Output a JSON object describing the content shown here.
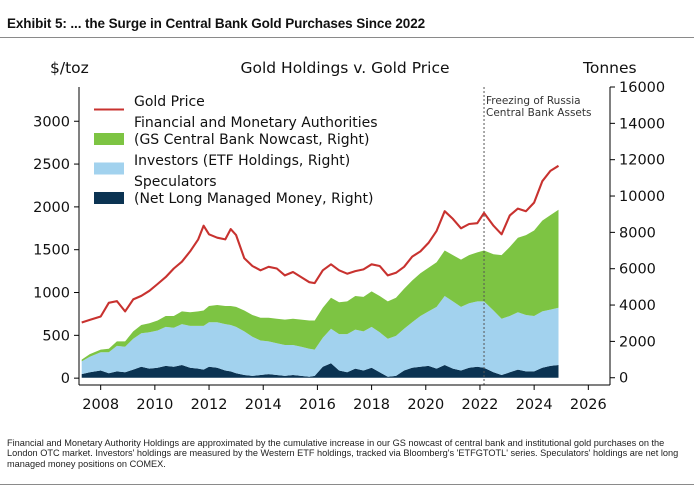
{
  "exhibit_title": "Exhibit 5: ... the Surge in Central Bank Gold Purchases Since 2022",
  "footnote": "Financial and Monetary Authority Holdings are approximated by the cumulative increase in our GS nowcast of central bank and institutional gold purchases on the London OTC market. Investors' holdings are measured by the Western ETF holdings, tracked via Bloomberg's 'ETFGTOTL' series. Speculators' holdings are net long managed money positions on COMEX.",
  "colors": {
    "gold_price": "#c8322f",
    "monetary": "#7dc443",
    "investors": "#a2d2ee",
    "speculators": "#0b3352"
  },
  "chart_data": {
    "type": "area",
    "title": "Gold Holdings v. Gold Price",
    "left_axis_label": "$/toz",
    "right_axis_label": "Tonnes",
    "xlim": [
      2007.2,
      2026.8
    ],
    "x_ticks": [
      2008,
      2010,
      2012,
      2014,
      2016,
      2018,
      2020,
      2022,
      2024,
      2026
    ],
    "left_ylim": [
      -80,
      3400
    ],
    "left_ticks": [
      0,
      500,
      1000,
      1500,
      2000,
      2500,
      3000
    ],
    "right_ylim": [
      -400,
      16000
    ],
    "right_ticks": [
      0,
      2000,
      4000,
      6000,
      8000,
      10000,
      12000,
      14000,
      16000
    ],
    "annotation": {
      "x": 2022.15,
      "lines": [
        "Freezing of Russia",
        "Central Bank Assets"
      ]
    },
    "legend": [
      {
        "label": "Gold Price",
        "kind": "line",
        "color": "#c8322f"
      },
      {
        "label": "Financial and Monetary Authorities\n(GS Central Bank Nowcast, Right)",
        "kind": "patch",
        "color": "#7dc443"
      },
      {
        "label": "Investors (ETF Holdings, Right)",
        "kind": "patch",
        "color": "#a2d2ee"
      },
      {
        "label": "Speculators\n(Net Long Managed Money, Right)",
        "kind": "patch",
        "color": "#0b3352"
      }
    ],
    "x": [
      2007.3,
      2007.6,
      2008.0,
      2008.3,
      2008.6,
      2008.9,
      2009.2,
      2009.5,
      2009.8,
      2010.1,
      2010.4,
      2010.7,
      2011.0,
      2011.3,
      2011.6,
      2011.8,
      2012.0,
      2012.3,
      2012.6,
      2012.8,
      2013.0,
      2013.3,
      2013.6,
      2013.9,
      2014.2,
      2014.5,
      2014.8,
      2015.1,
      2015.4,
      2015.7,
      2015.9,
      2016.2,
      2016.5,
      2016.8,
      2017.1,
      2017.4,
      2017.7,
      2018.0,
      2018.3,
      2018.6,
      2018.9,
      2019.2,
      2019.5,
      2019.8,
      2020.1,
      2020.4,
      2020.7,
      2021.0,
      2021.3,
      2021.6,
      2021.9,
      2022.15,
      2022.5,
      2022.8,
      2023.1,
      2023.4,
      2023.7,
      2024.0,
      2024.3,
      2024.6,
      2024.9
    ],
    "series": [
      {
        "name": "Gold Price",
        "axis": "left",
        "values": [
          650,
          680,
          720,
          880,
          900,
          780,
          920,
          960,
          1020,
          1100,
          1180,
          1280,
          1360,
          1480,
          1620,
          1780,
          1680,
          1640,
          1620,
          1740,
          1670,
          1400,
          1310,
          1260,
          1300,
          1280,
          1200,
          1240,
          1180,
          1120,
          1110,
          1260,
          1330,
          1260,
          1220,
          1250,
          1270,
          1330,
          1310,
          1200,
          1230,
          1300,
          1420,
          1480,
          1580,
          1720,
          1950,
          1860,
          1750,
          1800,
          1810,
          1930,
          1780,
          1680,
          1900,
          1980,
          1950,
          2050,
          2300,
          2420,
          2480
        ]
      },
      {
        "name": "Speculators",
        "axis": "right",
        "values": [
          200,
          300,
          400,
          250,
          350,
          300,
          450,
          600,
          500,
          550,
          650,
          600,
          700,
          550,
          500,
          450,
          600,
          550,
          400,
          350,
          250,
          150,
          100,
          150,
          200,
          150,
          100,
          150,
          100,
          50,
          100,
          600,
          800,
          400,
          300,
          500,
          400,
          550,
          300,
          50,
          100,
          400,
          550,
          600,
          650,
          500,
          700,
          500,
          400,
          550,
          600,
          550,
          300,
          150,
          300,
          450,
          350,
          350,
          550,
          650,
          700
        ]
      },
      {
        "name": "Investors",
        "axis": "right",
        "values": [
          700,
          850,
          1000,
          1150,
          1400,
          1400,
          1700,
          1850,
          2000,
          2050,
          2150,
          2150,
          2250,
          2300,
          2350,
          2400,
          2450,
          2500,
          2550,
          2550,
          2550,
          2400,
          2150,
          1900,
          1800,
          1750,
          1700,
          1650,
          1600,
          1550,
          1450,
          1600,
          1900,
          2000,
          2100,
          2150,
          2150,
          2250,
          2200,
          2100,
          2200,
          2300,
          2500,
          2800,
          3000,
          3400,
          3800,
          3700,
          3500,
          3550,
          3600,
          3650,
          3400,
          3100,
          3100,
          3150,
          3100,
          3050,
          3100,
          3100,
          3150
        ]
      },
      {
        "name": "Financial and Monetary Authorities",
        "axis": "right",
        "values": [
          100,
          150,
          150,
          200,
          250,
          300,
          400,
          450,
          500,
          550,
          600,
          650,
          700,
          750,
          800,
          850,
          900,
          950,
          1000,
          1050,
          1100,
          1150,
          1200,
          1250,
          1300,
          1350,
          1400,
          1450,
          1500,
          1550,
          1600,
          1650,
          1700,
          1750,
          1800,
          1850,
          1900,
          1950,
          2000,
          2050,
          2100,
          2200,
          2300,
          2350,
          2400,
          2450,
          2500,
          2550,
          2600,
          2650,
          2700,
          2800,
          3100,
          3500,
          3800,
          4100,
          4400,
          4700,
          5000,
          5200,
          5400
        ]
      }
    ]
  }
}
